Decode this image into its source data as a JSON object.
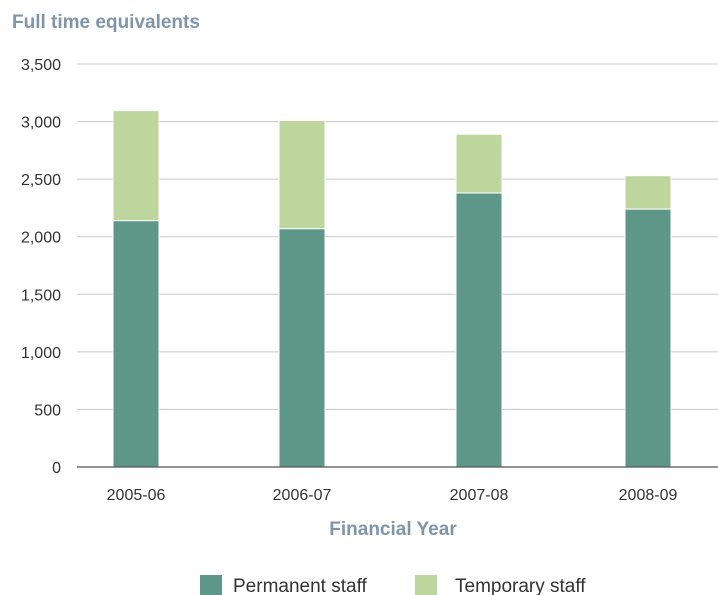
{
  "chart_data": {
    "type": "bar",
    "stacked": true,
    "title": "Full time equivalents",
    "xlabel": "Financial Year",
    "ylabel": "",
    "ylim": [
      0,
      3500
    ],
    "yticks": [
      0,
      500,
      1000,
      1500,
      2000,
      2500,
      3000,
      3500
    ],
    "ytick_labels": [
      "0",
      "500",
      "1,000",
      "1,500",
      "2,000",
      "2,500",
      "3,000",
      "3,500"
    ],
    "categories": [
      "2005-06",
      "2006-07",
      "2007-08",
      "2008-09"
    ],
    "series": [
      {
        "name": "Permanent staff",
        "values": [
          2140,
          2070,
          2380,
          2240
        ],
        "color": "#5e9688"
      },
      {
        "name": "Temporary staff",
        "values": [
          955,
          940,
          510,
          290
        ],
        "color": "#bed69e"
      }
    ],
    "grid": true,
    "legend_position": "bottom-center"
  },
  "colors": {
    "title": "#7f95ab",
    "xlabel": "#7f95ab",
    "grid": "#c8c8c8",
    "axis": "#555555"
  }
}
